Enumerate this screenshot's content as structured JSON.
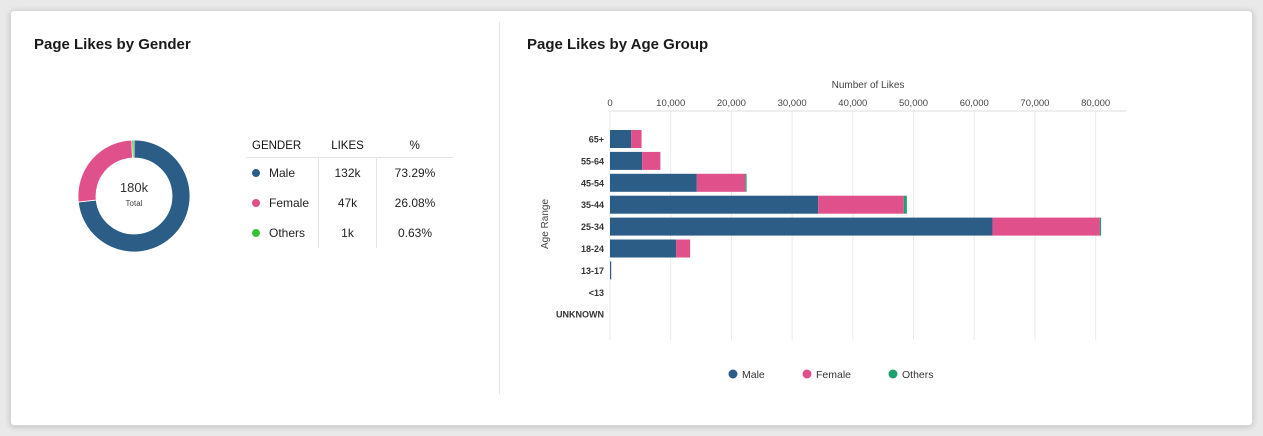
{
  "gender_panel": {
    "title": "Page Likes by Gender",
    "donut_center": {
      "value": "180k",
      "label": "Total"
    },
    "table_headers": {
      "gender": "GENDER",
      "likes": "LIKES",
      "percent": "%"
    },
    "rows": [
      {
        "gender": "Male",
        "likes": "132k",
        "percent": "73.29%",
        "color": "#2b5d86"
      },
      {
        "gender": "Female",
        "likes": "47k",
        "percent": "26.08%",
        "color": "#e0508a"
      },
      {
        "gender": "Others",
        "likes": "1k",
        "percent": "0.63%",
        "color": "#3bbf3b"
      }
    ]
  },
  "age_panel": {
    "title": "Page Likes by Age Group"
  },
  "chart_data": [
    {
      "type": "pie",
      "variant": "donut",
      "categories": [
        "Male",
        "Female",
        "Others"
      ],
      "values": [
        73.29,
        26.08,
        0.63
      ],
      "colors": [
        "#2b5d86",
        "#e0508a",
        "#3bbf3b"
      ]
    },
    {
      "type": "bar",
      "orientation": "horizontal",
      "stacked": true,
      "xlabel": "Number of Likes",
      "ylabel": "Age Range",
      "xlim": [
        0,
        85000
      ],
      "xticks": [
        0,
        10000,
        20000,
        30000,
        40000,
        50000,
        60000,
        70000,
        80000
      ],
      "xtick_labels": [
        "0",
        "10,000",
        "20,000",
        "30,000",
        "40,000",
        "50,000",
        "60,000",
        "70,000",
        "80,000"
      ],
      "grid": true,
      "legend_position": "bottom",
      "categories": [
        "65+",
        "55-64",
        "45-54",
        "35-44",
        "25-34",
        "18-24",
        "13-17",
        "<13",
        "UNKNOWN"
      ],
      "series": [
        {
          "name": "Male",
          "color": "#2b5d86",
          "values": [
            3500,
            5300,
            14300,
            34300,
            63000,
            10900,
            200,
            0,
            0
          ]
        },
        {
          "name": "Female",
          "color": "#e0508a",
          "values": [
            1700,
            3000,
            8000,
            14100,
            17700,
            2300,
            0,
            0,
            0
          ]
        },
        {
          "name": "Others",
          "color": "#1fa06f",
          "values": [
            0,
            0,
            200,
            500,
            200,
            0,
            0,
            0,
            0
          ]
        }
      ]
    }
  ]
}
